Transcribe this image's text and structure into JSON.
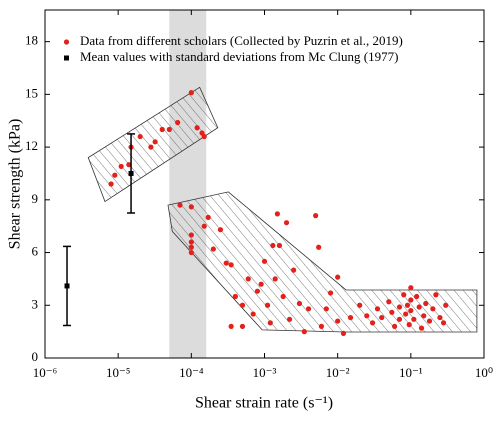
{
  "chart_data": {
    "type": "scatter",
    "x_label": "Shear strain rate (s⁻¹)",
    "y_label": "Shear strength (kPa)",
    "xlog": true,
    "xlim": [
      1e-06,
      1
    ],
    "ylim": [
      0,
      19.8
    ],
    "xticks": [
      {
        "value": 1e-06,
        "label": "10⁻⁶"
      },
      {
        "value": 1e-05,
        "label": "10⁻⁵"
      },
      {
        "value": 0.0001,
        "label": "10⁻⁴"
      },
      {
        "value": 0.001,
        "label": "10⁻³"
      },
      {
        "value": 0.01,
        "label": "10⁻²"
      },
      {
        "value": 0.1,
        "label": "10⁻¹"
      },
      {
        "value": 1,
        "label": "10⁰"
      }
    ],
    "yticks": [
      0,
      3,
      6,
      9,
      12,
      15,
      18
    ],
    "legend_position": "upper left",
    "shaded_x": [
      5e-05,
      0.00016
    ],
    "shaded_color": "#dcdcdc",
    "hatched_regions": [
      {
        "x": [
          3.9e-06,
          0.00013,
          0.00023,
          6.6e-06
        ],
        "y": [
          11.4,
          15.4,
          13.1,
          8.9
        ]
      },
      {
        "x": [
          4.8e-05,
          0.00032,
          0.013,
          0.8,
          0.8,
          0.013,
          0.00093,
          5.5e-05
        ],
        "y": [
          8.7,
          9.45,
          3.87,
          3.87,
          1.48,
          1.48,
          1.6,
          7.2
        ]
      }
    ],
    "series": [
      {
        "name": "Data from different scholars (Collected by Puzrin et al., 2019)",
        "color": "#e3201b",
        "x": [
          8e-06,
          9e-06,
          1.1e-05,
          1.4e-05,
          1.5e-05,
          2e-05,
          2.8e-05,
          3.2e-05,
          4e-05,
          5e-05,
          6.5e-05,
          0.0001,
          0.00012,
          0.00015,
          0.00014,
          7e-05,
          0.0001,
          0.0001,
          0.0001,
          0.0001,
          0.0001,
          0.00015,
          0.00017,
          0.0002,
          0.00025,
          0.0003,
          0.00035,
          0.0004,
          0.00035,
          0.0005,
          0.0005,
          0.0006,
          0.0007,
          0.0008,
          0.0009,
          0.001,
          0.0011,
          0.0012,
          0.0013,
          0.0014,
          0.0015,
          0.0016,
          0.0018,
          0.002,
          0.0022,
          0.0025,
          0.003,
          0.0035,
          0.004,
          0.005,
          0.0055,
          0.006,
          0.007,
          0.008,
          0.01,
          0.01,
          0.012,
          0.015,
          0.02,
          0.025,
          0.03,
          0.035,
          0.04,
          0.05,
          0.055,
          0.06,
          0.07,
          0.07,
          0.08,
          0.085,
          0.09,
          0.095,
          0.1,
          0.1,
          0.1,
          0.11,
          0.12,
          0.13,
          0.14,
          0.15,
          0.16,
          0.18,
          0.2,
          0.22,
          0.25,
          0.28,
          0.3
        ],
        "values": [
          9.9,
          10.4,
          10.9,
          11.0,
          12.0,
          12.6,
          12.0,
          12.3,
          13.0,
          13.0,
          13.4,
          15.1,
          13.1,
          12.6,
          12.8,
          8.7,
          8.6,
          7.0,
          6.6,
          6.3,
          6.0,
          7.5,
          8.0,
          6.2,
          7.3,
          5.4,
          5.3,
          3.5,
          1.8,
          1.8,
          3.0,
          4.5,
          2.5,
          3.8,
          4.2,
          5.5,
          3.0,
          2.0,
          6.4,
          4.5,
          8.2,
          6.4,
          3.5,
          7.7,
          2.2,
          5.0,
          3.1,
          1.5,
          2.8,
          8.1,
          6.3,
          1.8,
          2.8,
          3.7,
          4.6,
          2.1,
          1.4,
          2.3,
          3.0,
          2.4,
          2.0,
          2.8,
          2.3,
          3.2,
          2.6,
          1.8,
          2.9,
          2.2,
          3.6,
          2.5,
          3.0,
          1.9,
          4.0,
          3.3,
          2.7,
          2.2,
          3.5,
          2.9,
          1.7,
          2.4,
          3.1,
          2.1,
          2.8,
          3.6,
          2.3,
          2.0,
          3.0
        ]
      },
      {
        "name": "Mean values with standard deviations from Mc Clung (1977)",
        "color": "#000000",
        "x": [
          2e-06,
          1.5e-05
        ],
        "values": [
          4.1,
          10.5
        ],
        "errors": [
          2.25,
          2.25
        ]
      }
    ]
  }
}
